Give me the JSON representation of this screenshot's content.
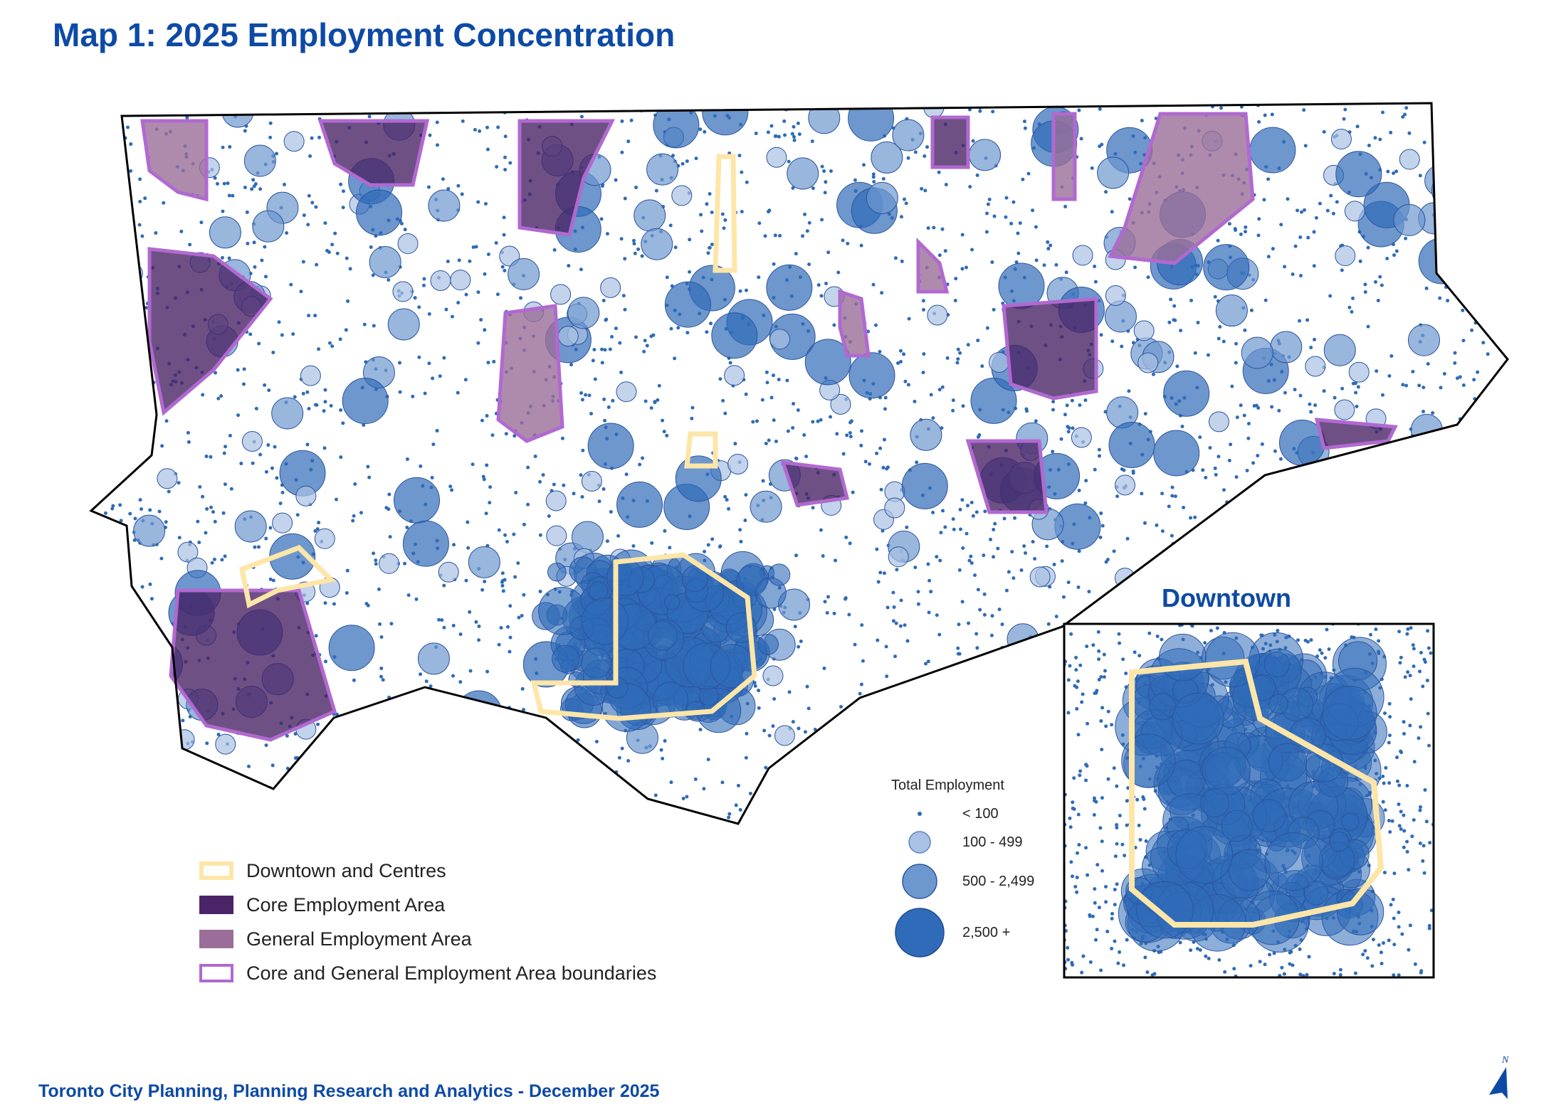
{
  "title": "Map 1: 2025 Employment Concentration",
  "footer": "Toronto City Planning, Planning Research and Analytics - December 2025",
  "inset_title": "Downtown",
  "north_label": "N",
  "colors": {
    "dot": "#2f6bb8",
    "light": "#a9c1e3",
    "medium": "#6d97cf",
    "dark": "#2f6bb8",
    "core": "#4a2466",
    "general": "#9a6e98",
    "boundary": "#b169d0",
    "centres": "#fde6a8",
    "title": "#0d4aa6"
  },
  "area_legend": [
    {
      "label": "Downtown and Centres",
      "icon": "centres-swatch"
    },
    {
      "label": "Core Employment Area",
      "icon": "core-swatch"
    },
    {
      "label": "General Employment Area",
      "icon": "general-swatch"
    },
    {
      "label": "Core and General Employment Area boundaries",
      "icon": "boundary-swatch"
    }
  ],
  "employment_legend": {
    "title": "Total Employment",
    "classes": [
      {
        "label": "< 100"
      },
      {
        "label": "100 - 499"
      },
      {
        "label": "500 - 2,499"
      },
      {
        "label": "2,500 +"
      }
    ]
  }
}
